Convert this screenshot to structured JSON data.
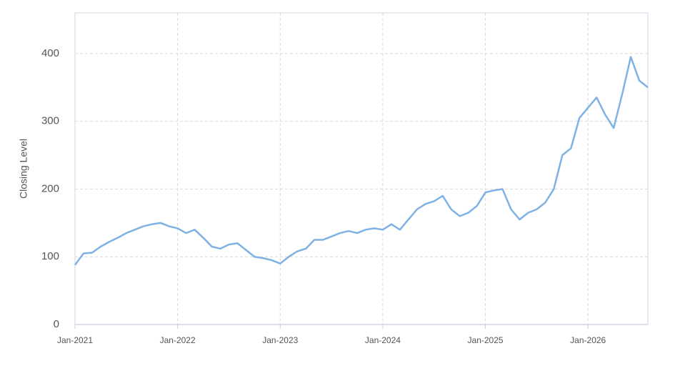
{
  "chart_data": {
    "type": "line",
    "y_label": "Closing Level",
    "x": [
      "2021-01",
      "2021-02",
      "2021-03",
      "2021-04",
      "2021-05",
      "2021-06",
      "2021-07",
      "2021-08",
      "2021-09",
      "2021-10",
      "2021-11",
      "2021-12",
      "2022-01",
      "2022-02",
      "2022-03",
      "2022-04",
      "2022-05",
      "2022-06",
      "2022-07",
      "2022-08",
      "2022-09",
      "2022-10",
      "2022-11",
      "2022-12",
      "2023-01",
      "2023-02",
      "2023-03",
      "2023-04",
      "2023-05",
      "2023-06",
      "2023-07",
      "2023-08",
      "2023-09",
      "2023-10",
      "2023-11",
      "2023-12",
      "2024-01",
      "2024-02",
      "2024-03",
      "2024-04",
      "2024-05",
      "2024-06",
      "2024-07",
      "2024-08",
      "2024-09",
      "2024-10",
      "2024-11",
      "2024-12",
      "2025-01",
      "2025-02",
      "2025-03",
      "2025-04",
      "2025-05",
      "2025-06",
      "2025-07",
      "2025-08",
      "2025-09",
      "2025-10",
      "2025-11",
      "2025-12",
      "2026-01",
      "2026-02",
      "2026-03",
      "2026-04",
      "2026-05",
      "2026-06",
      "2026-07",
      "2026-08"
    ],
    "series": [
      {
        "name": "Closing Level",
        "color": "#7eb2e4",
        "values": [
          88,
          105,
          106,
          115,
          122,
          128,
          135,
          140,
          145,
          148,
          150,
          145,
          142,
          135,
          140,
          128,
          115,
          112,
          118,
          120,
          110,
          100,
          98,
          95,
          90,
          100,
          108,
          112,
          125,
          125,
          130,
          135,
          138,
          135,
          140,
          142,
          140,
          148,
          140,
          155,
          170,
          178,
          182,
          190,
          170,
          160,
          165,
          175,
          195,
          198,
          200,
          170,
          155,
          165,
          170,
          180,
          200,
          250,
          260,
          305,
          320,
          335,
          310,
          290,
          340,
          395,
          360,
          350
        ]
      }
    ],
    "xlim": [
      "2021-01",
      "2026-08"
    ],
    "xticks": [
      {
        "value": "2021-01",
        "label": "Jan-2021"
      },
      {
        "value": "2022-01",
        "label": "Jan-2022"
      },
      {
        "value": "2023-01",
        "label": "Jan-2023"
      },
      {
        "value": "2024-01",
        "label": "Jan-2024"
      },
      {
        "value": "2025-01",
        "label": "Jan-2025"
      },
      {
        "value": "2026-01",
        "label": "Jan-2026"
      }
    ],
    "ylim": [
      0,
      460
    ],
    "yticks": [
      0,
      100,
      200,
      300,
      400
    ],
    "grid": true
  }
}
